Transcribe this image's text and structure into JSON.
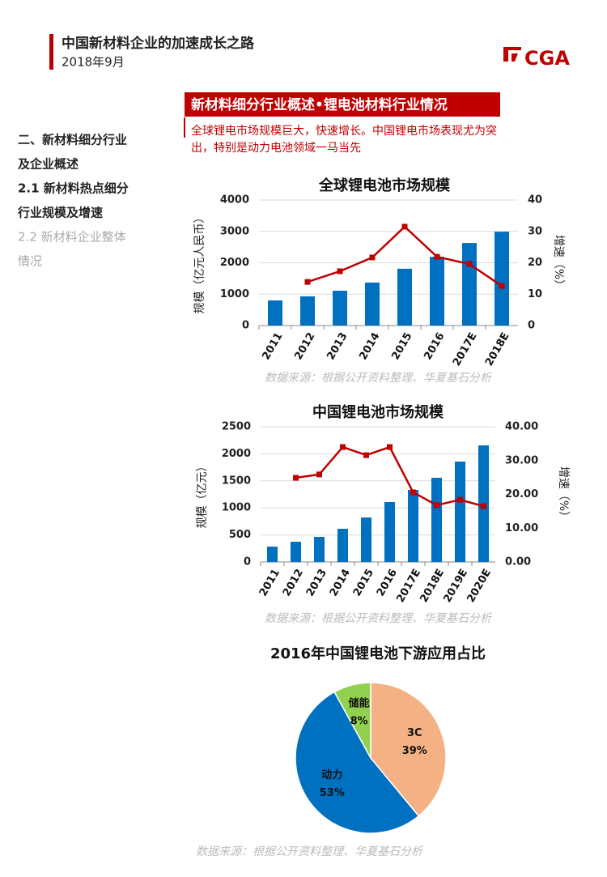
{
  "header": {
    "title": "中国新材料企业的加速成长之路",
    "date": "2018年9月",
    "logo": "CGA"
  },
  "sidebar": {
    "items": [
      "二、新材料细分行业",
      "及企业概述",
      "2.1 新材料热点细分",
      "行业规模及增速",
      "2.2 新材料企业整体",
      "情况"
    ]
  },
  "section": {
    "title": "新材料细分行业概述•锂电池材料行业情况",
    "subtitle": [
      "全球锂电市场规模巨大，快速增长。中国锂电市场表现尤为突",
      "出，特别是动力电池领域一马当先"
    ]
  },
  "chart_data": [
    {
      "type": "bar",
      "title": "全球锂电池市场规模",
      "categories": [
        "2011",
        "2012",
        "2013",
        "2014",
        "2015",
        "2016",
        "2017E",
        "2018E"
      ],
      "series": [
        {
          "color": "#0070c0",
          "values": [
            800,
            930,
            1110,
            1370,
            1810,
            2190,
            2630,
            2990
          ]
        },
        {
          "type": "line",
          "axis": "y2",
          "color": "#c00000",
          "values": [
            null,
            13.9,
            17.3,
            21.7,
            31.5,
            21.9,
            19.6,
            12.6
          ]
        }
      ],
      "ylabel": "规模（亿元人民币）",
      "y2label": "增速（%）",
      "ylim": [
        0,
        4000
      ],
      "yticks": [
        0,
        1000,
        2000,
        3000,
        4000
      ],
      "y2lim": [
        0,
        40
      ],
      "y2ticks": [
        0,
        10,
        20,
        30,
        40
      ],
      "grid": true,
      "source": "数据来源：根据公开资料整理、华夏基石分析"
    },
    {
      "type": "bar",
      "title": "中国锂电池市场规模",
      "categories": [
        "2011",
        "2012",
        "2013",
        "2014",
        "2015",
        "2016",
        "2017E",
        "2018E",
        "2019E",
        "2020E"
      ],
      "series": [
        {
          "color": "#0070c0",
          "values": [
            284,
            374,
            464,
            614,
            823,
            1108,
            1332,
            1557,
            1856,
            2156
          ]
        },
        {
          "type": "line",
          "axis": "y2",
          "color": "#c00000",
          "values": [
            null,
            24.9,
            25.9,
            34,
            31.6,
            34,
            20.6,
            16.8,
            18.4,
            16.5
          ]
        }
      ],
      "ylabel": "规模（亿元）",
      "y2label": "增速（%）",
      "ylim": [
        0,
        2500
      ],
      "yticks": [
        0,
        500,
        1000,
        1500,
        2000,
        2500
      ],
      "y2lim": [
        0,
        40
      ],
      "y2ticks": [
        {
          "value": 0,
          "label": "0.00"
        },
        {
          "value": 10,
          "label": "10.00"
        },
        {
          "value": 20,
          "label": "20.00"
        },
        {
          "value": 30,
          "label": "30.00"
        },
        {
          "value": 40,
          "label": "40.00"
        }
      ],
      "grid": true,
      "source": "数据来源：根据公开资料整理、华夏基石分析"
    },
    {
      "type": "pie",
      "title": "2016年中国锂电池下游应用占比",
      "categories": [
        "3C",
        "动力",
        "储能"
      ],
      "values": [
        39,
        53,
        8
      ],
      "value_labels": [
        "39%",
        "53%",
        "8%"
      ],
      "colors": [
        "#f4b183",
        "#0070c0",
        "#92d050"
      ],
      "source": "数据来源：根据公开资料整理、华夏基石分析"
    }
  ]
}
